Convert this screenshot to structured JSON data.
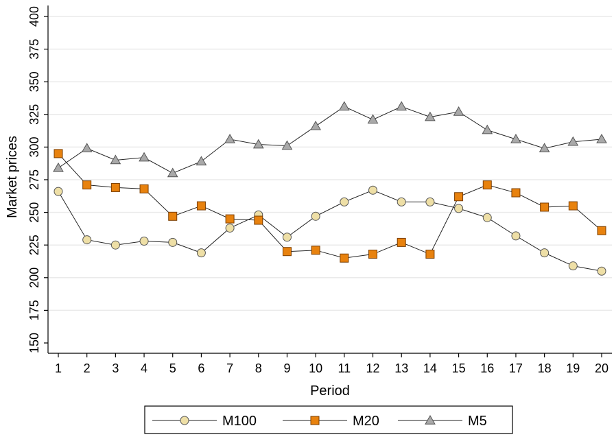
{
  "chart_data": {
    "type": "line",
    "title": "",
    "xlabel": "Period",
    "ylabel": "Market prices",
    "x": [
      1,
      2,
      3,
      4,
      5,
      6,
      7,
      8,
      9,
      10,
      11,
      12,
      13,
      14,
      15,
      16,
      17,
      18,
      19,
      20
    ],
    "xlim": [
      1,
      20
    ],
    "ylim": [
      150,
      400
    ],
    "yticks": [
      150,
      175,
      200,
      225,
      250,
      275,
      300,
      325,
      350,
      375,
      400
    ],
    "grid": "horizontal",
    "legend": "bottom",
    "series": [
      {
        "name": "M100",
        "marker": "circle",
        "color": "#EEDFA6",
        "values": [
          266,
          229,
          225,
          228,
          227,
          219,
          238,
          248,
          231,
          247,
          258,
          267,
          258,
          258,
          253,
          246,
          232,
          219,
          209,
          205
        ]
      },
      {
        "name": "M20",
        "marker": "square",
        "color": "#E8820E",
        "values": [
          295,
          271,
          269,
          268,
          247,
          255,
          245,
          244,
          220,
          221,
          215,
          218,
          227,
          218,
          262,
          271,
          265,
          254,
          255,
          236
        ]
      },
      {
        "name": "M5",
        "marker": "triangle",
        "color": "#A9A9A9",
        "values": [
          284,
          299,
          290,
          292,
          280,
          289,
          306,
          302,
          301,
          316,
          331,
          321,
          331,
          323,
          327,
          313,
          306,
          299,
          304,
          306
        ]
      }
    ]
  }
}
